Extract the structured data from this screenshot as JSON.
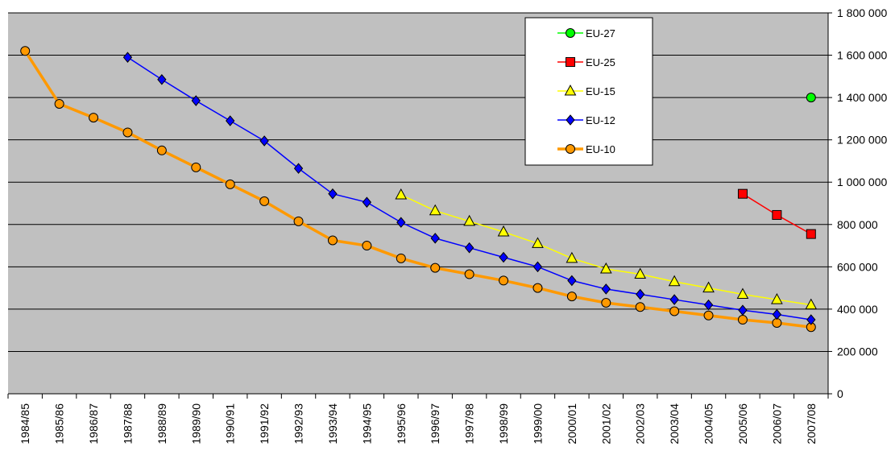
{
  "chart_data": {
    "type": "line",
    "categories": [
      "1984/85",
      "1985/86",
      "1986/87",
      "1987/88",
      "1988/89",
      "1989/90",
      "1990/91",
      "1991/92",
      "1992/93",
      "1993/94",
      "1994/95",
      "1995/96",
      "1996/97",
      "1997/98",
      "1998/99",
      "1999/00",
      "2000/01",
      "2001/02",
      "2002/03",
      "2003/04",
      "2004/05",
      "2005/06",
      "2006/07",
      "2007/08"
    ],
    "y_ticks": [
      "0",
      "200 000",
      "400 000",
      "600 000",
      "800 000",
      "1 000 000",
      "1 200 000",
      "1 400 000",
      "1 600 000",
      "1 800 000"
    ],
    "ylim": [
      0,
      1800000
    ],
    "grid": true,
    "legend_position": "top-right",
    "plot_background": "#c0c0c0",
    "series": [
      {
        "name": "EU-27",
        "color": "#00ff00",
        "marker": "circle",
        "line_width": 1.5,
        "values": [
          null,
          null,
          null,
          null,
          null,
          null,
          null,
          null,
          null,
          null,
          null,
          null,
          null,
          null,
          null,
          null,
          null,
          null,
          null,
          null,
          null,
          null,
          null,
          1400000
        ]
      },
      {
        "name": "EU-25",
        "color": "#ff0000",
        "marker": "square",
        "line_width": 1.5,
        "values": [
          null,
          null,
          null,
          null,
          null,
          null,
          null,
          null,
          null,
          null,
          null,
          null,
          null,
          null,
          null,
          null,
          null,
          null,
          null,
          null,
          null,
          945000,
          845000,
          755000
        ]
      },
      {
        "name": "EU-15",
        "color": "#ffff00",
        "marker": "triangle",
        "line_width": 1.5,
        "values": [
          null,
          null,
          null,
          null,
          null,
          null,
          null,
          null,
          null,
          null,
          null,
          940000,
          865000,
          815000,
          765000,
          710000,
          640000,
          590000,
          565000,
          530000,
          500000,
          470000,
          445000,
          420000
        ]
      },
      {
        "name": "EU-12",
        "color": "#0000ff",
        "marker": "diamond",
        "line_width": 1.5,
        "values": [
          null,
          null,
          null,
          1590000,
          1485000,
          1385000,
          1290000,
          1195000,
          1065000,
          945000,
          905000,
          810000,
          735000,
          690000,
          645000,
          600000,
          535000,
          495000,
          470000,
          445000,
          420000,
          395000,
          375000,
          350000
        ]
      },
      {
        "name": "EU-10",
        "color": "#ff9900",
        "marker": "circle",
        "line_width": 3.5,
        "values": [
          1620000,
          1370000,
          1305000,
          1235000,
          1150000,
          1070000,
          990000,
          910000,
          815000,
          725000,
          700000,
          640000,
          595000,
          565000,
          535000,
          500000,
          460000,
          430000,
          410000,
          390000,
          370000,
          350000,
          335000,
          315000
        ]
      }
    ]
  }
}
